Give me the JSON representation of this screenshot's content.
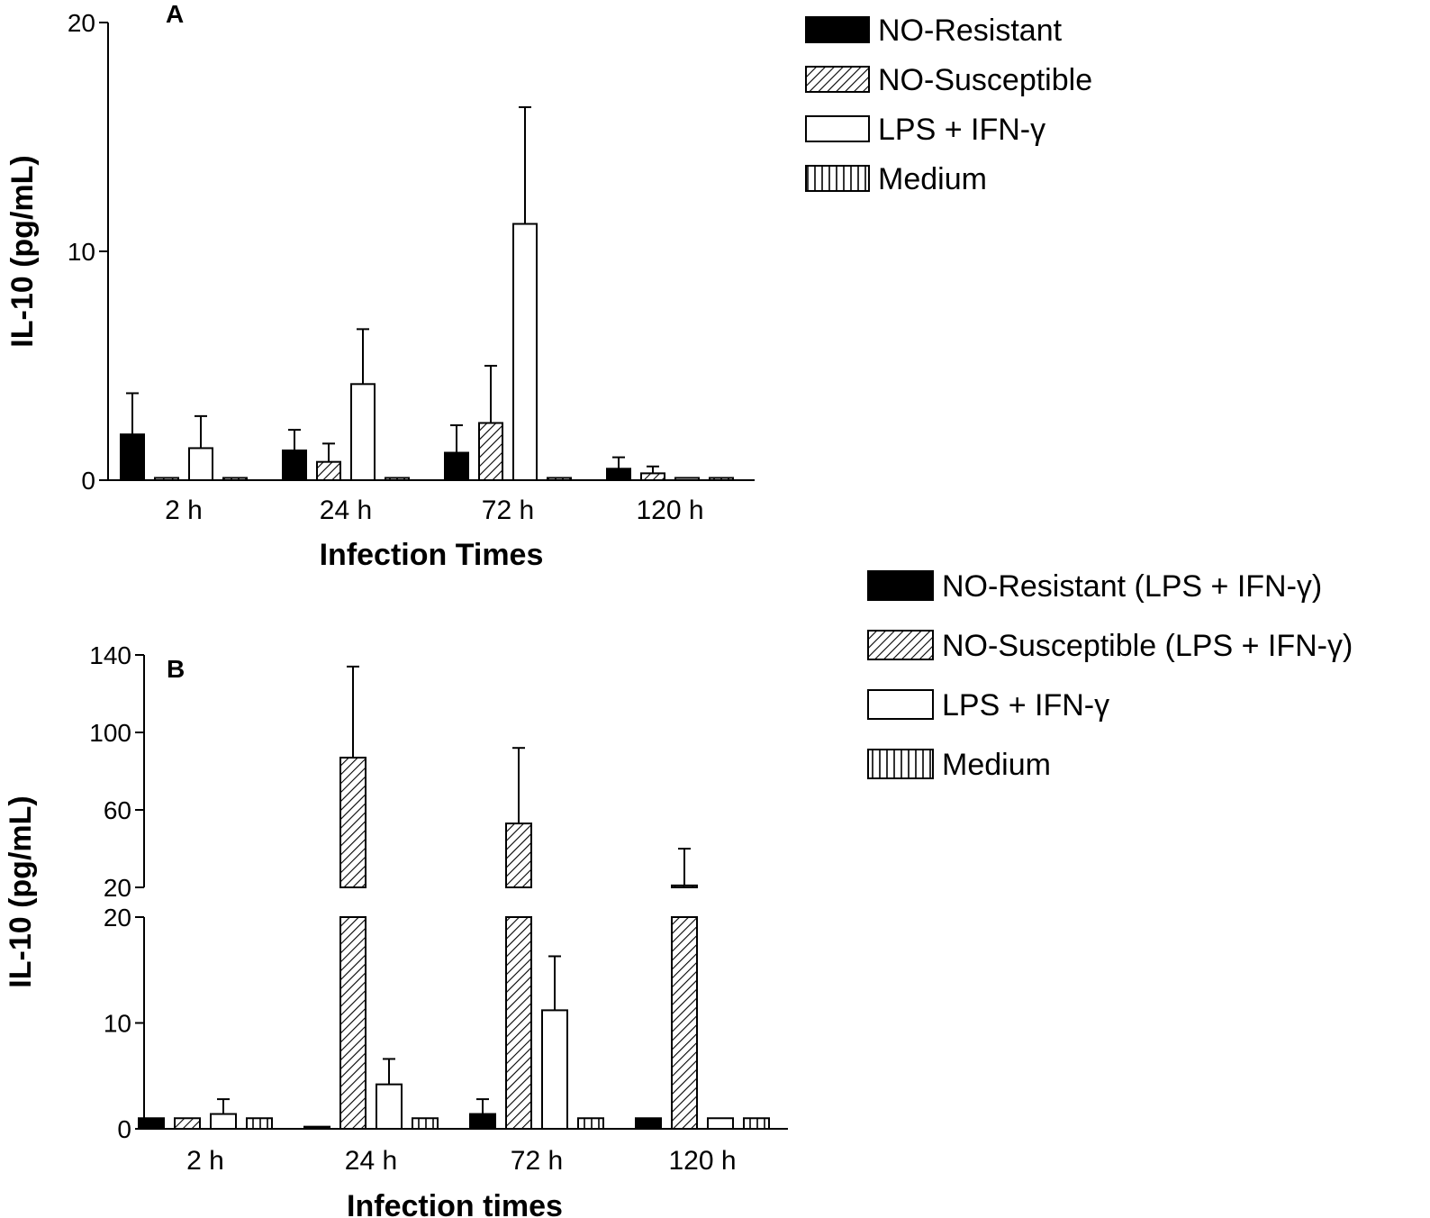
{
  "chart_data": [
    {
      "panel": "A",
      "type": "bar",
      "xlabel": "Infection Times",
      "ylabel": "IL-10 (pg/mL)",
      "ylim": [
        0,
        20
      ],
      "yticks": [
        "0",
        "10",
        "20"
      ],
      "categories": [
        "2 h",
        "24 h",
        "72 h",
        "120 h"
      ],
      "legend_position": "top-right",
      "series": [
        {
          "name": "NO-Resistant",
          "pattern": "solid",
          "values": [
            2.0,
            1.3,
            1.2,
            0.5
          ],
          "errors": [
            1.8,
            0.9,
            1.2,
            0.5
          ]
        },
        {
          "name": "NO-Susceptible",
          "pattern": "diagonal",
          "values": [
            0.1,
            0.8,
            2.5,
            0.3
          ],
          "errors": [
            0.0,
            0.8,
            2.5,
            0.3
          ]
        },
        {
          "name": "LPS + IFN-γ",
          "pattern": "open",
          "values": [
            1.4,
            4.2,
            11.2,
            0.1
          ],
          "errors": [
            1.4,
            2.4,
            5.1,
            0.0
          ]
        },
        {
          "name": "Medium",
          "pattern": "vertical",
          "values": [
            0.1,
            0.1,
            0.1,
            0.1
          ],
          "errors": [
            0,
            0,
            0,
            0
          ]
        }
      ]
    },
    {
      "panel": "B",
      "type": "bar",
      "xlabel": "Infection times",
      "ylabel": "IL-10 (pg/mL)",
      "ylim": [
        0,
        140
      ],
      "axis_break": [
        20,
        20
      ],
      "yticks_lower": [
        "0",
        "10",
        "20"
      ],
      "yticks_upper": [
        "20",
        "60",
        "100",
        "140"
      ],
      "categories": [
        "2 h",
        "24 h",
        "72 h",
        "120 h"
      ],
      "legend_position": "right",
      "series": [
        {
          "name": "NO-Resistant (LPS + IFN-γ)",
          "pattern": "solid",
          "values": [
            1.0,
            0.2,
            1.4,
            1.0
          ],
          "errors": [
            0,
            0,
            1.4,
            0
          ]
        },
        {
          "name": "NO-Susceptible (LPS + IFN-γ)",
          "pattern": "diagonal",
          "values": [
            1.0,
            87,
            53,
            21
          ],
          "errors": [
            0,
            47,
            39,
            19
          ]
        },
        {
          "name": "LPS + IFN-γ",
          "pattern": "open",
          "values": [
            1.4,
            4.2,
            11.2,
            1.0
          ],
          "errors": [
            1.4,
            2.4,
            5.1,
            0
          ]
        },
        {
          "name": "Medium",
          "pattern": "vertical",
          "values": [
            1.0,
            1.0,
            1.0,
            1.0
          ],
          "errors": [
            0,
            0,
            0,
            0
          ]
        }
      ]
    }
  ]
}
